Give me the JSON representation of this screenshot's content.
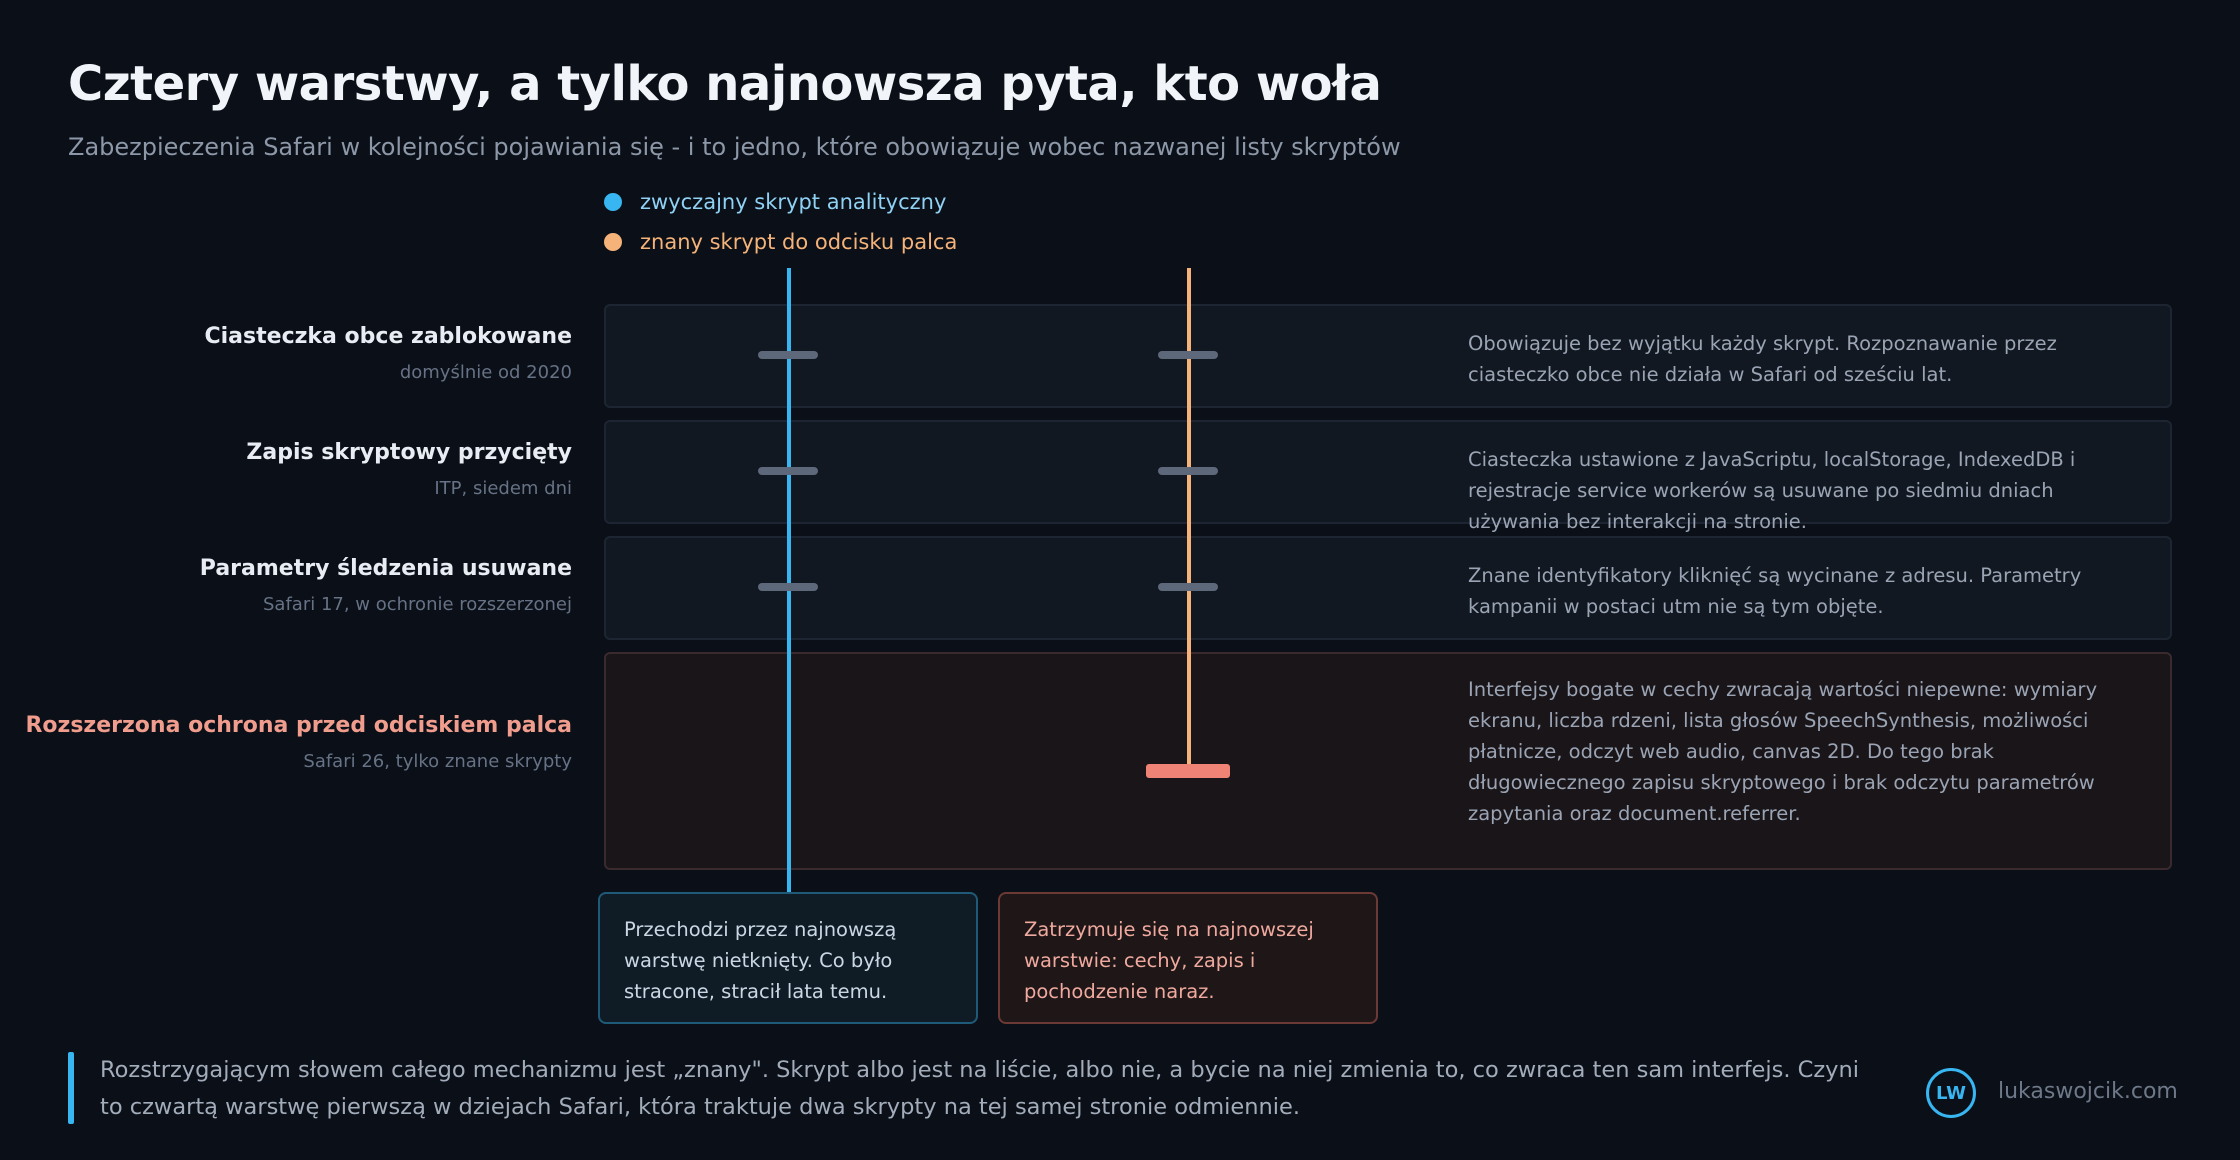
{
  "title": "Cztery warstwy, a tylko najnowsza pyta, kto woła",
  "subtitle": "Zabezpieczenia Safari w kolejności pojawiania się - i to jedno, które obowiązuje wobec nazwanej listy skryptów",
  "legend": [
    {
      "label": "zwyczajny skrypt analityczny",
      "color": "#38b6f1"
    },
    {
      "label": "znany skrypt do odcisku palca",
      "color": "#f5b37a"
    }
  ],
  "layers": [
    {
      "name": "Ciasteczka obce zablokowane",
      "sub": "domyślnie od 2020",
      "description": "Obowiązuje bez wyjątku każdy skrypt. Rozpoznawanie przez ciasteczko obce nie działa w Safari od sześciu lat.",
      "name_color": "#e9edf3"
    },
    {
      "name": "Zapis skryptowy przycięty",
      "sub": "ITP, siedem dni",
      "description": "Ciasteczka ustawione z JavaScriptu, localStorage, IndexedDB i rejestracje service workerów są usuwane po siedmiu dniach używania bez interakcji na stronie.",
      "name_color": "#e9edf3"
    },
    {
      "name": "Parametry śledzenia usuwane",
      "sub": "Safari 17, w ochronie rozszerzonej",
      "description": "Znane identyfikatory kliknięć są wycinane z adresu. Parametry kampanii w postaci utm nie są tym objęte.",
      "name_color": "#e9edf3"
    },
    {
      "name": "Rozszerzona ochrona przed odciskiem palca",
      "sub": "Safari 26, tylko znane skrypty",
      "description": "Interfejsy bogate w cechy zwracają wartości niepewne: wymiary ekranu, liczba rdzeni, lista głosów SpeechSynthesis, możliwości płatnicze, odczyt web audio, canvas 2D. Do tego brak długowiecznego zapisu skryptowego i brak odczytu parametrów zapytania oraz document.referrer.",
      "name_color": "#f19d8e"
    }
  ],
  "outcomes": {
    "analytics": "Przechodzi przez najnowszą warstwę nietknięty. Co było stracone, stracił lata temu.",
    "fingerprint": "Zatrzymuje się na najnowszej warstwie: cechy, zapis i pochodzenie naraz."
  },
  "footer": "Rozstrzygającym słowem całego mechanizmu jest „znany\". Skrypt albo jest na liście, albo nie, a bycie na niej zmienia to, co zwraca ten sam interfejs. Czyni to czwartą warstwę pierwszą w dziejach Safari, która traktuje dwa skrypty na tej samej stronie odmiennie.",
  "brand": {
    "logo": "LW",
    "site": "lukaswojcik.com"
  }
}
